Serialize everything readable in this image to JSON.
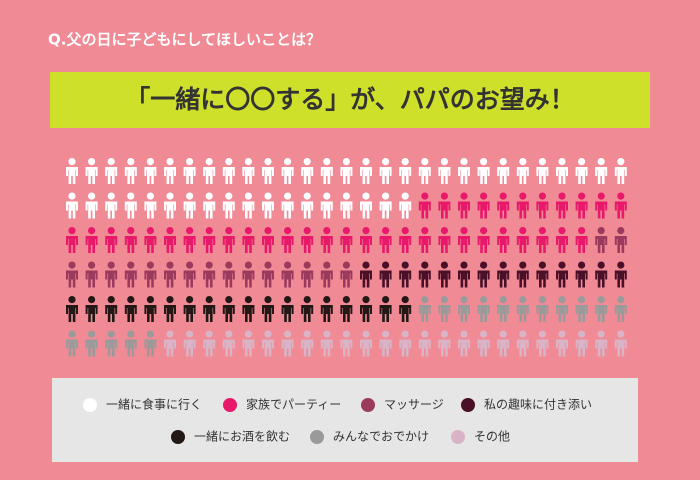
{
  "chart_data": {
    "type": "pictograph",
    "question": "Q.父の日に子どもにしてほしいことは？",
    "title": "「一緒に〇〇する」が、パパのお望み！",
    "series": [
      {
        "name": "一緒に食事に行く",
        "color": "#ffffff",
        "value": 47
      },
      {
        "name": "家族でパーティー",
        "color": "#e8196a",
        "value": 38
      },
      {
        "name": "マッサージ",
        "color": "#9c3a5e",
        "value": 17
      },
      {
        "name": "私の趣味に付き添い",
        "color": "#4a1028",
        "value": 14
      },
      {
        "name": "一緒にお酒を飲む",
        "color": "#231815",
        "value": 18
      },
      {
        "name": "みんなでおでかけ",
        "color": "#9a9a9a",
        "value": 16
      },
      {
        "name": "その他",
        "color": "#d9b3c6",
        "value": 24
      }
    ]
  }
}
